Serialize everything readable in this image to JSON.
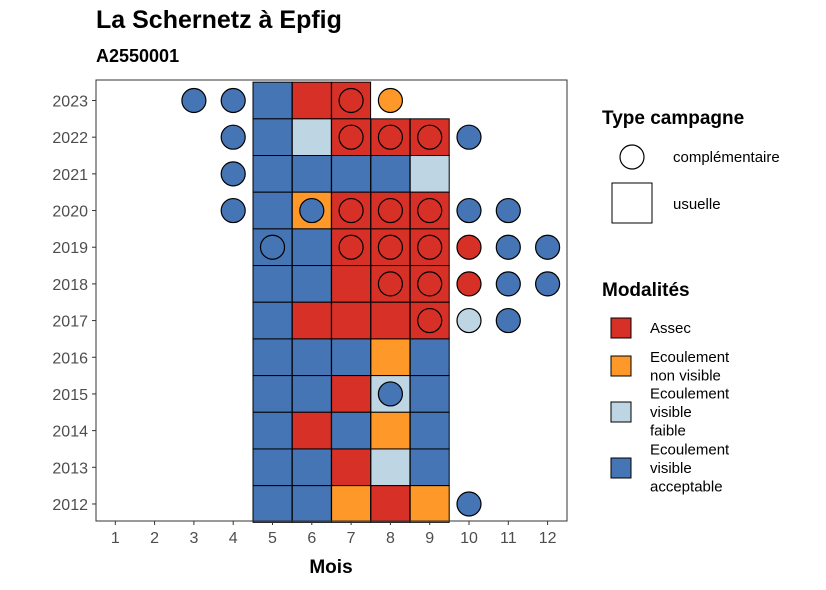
{
  "title": "La Schernetz à Epfig",
  "subtitle": "A2550001",
  "chart_data": {
    "type": "heatmap",
    "xlabel": "Mois",
    "ylabel": "",
    "x_ticks": [
      1,
      2,
      3,
      4,
      5,
      6,
      7,
      8,
      9,
      10,
      11,
      12
    ],
    "y_ticks": [
      2012,
      2013,
      2014,
      2015,
      2016,
      2017,
      2018,
      2019,
      2020,
      2021,
      2022,
      2023
    ],
    "legend_type": {
      "title": "Type campagne",
      "entries": [
        {
          "key": "complementaire",
          "label": "complémentaire",
          "shape": "circle"
        },
        {
          "key": "usuelle",
          "label": "usuelle",
          "shape": "square"
        }
      ]
    },
    "legend_mod": {
      "title": "Modalités",
      "entries": [
        {
          "key": "assec",
          "lines": [
            "Assec"
          ],
          "color": "#D73027"
        },
        {
          "key": "nv",
          "lines": [
            "Ecoulement",
            "non visible"
          ],
          "color": "#FE9929"
        },
        {
          "key": "vf",
          "lines": [
            "Ecoulement",
            "visible",
            "faible"
          ],
          "color": "#BED5E3"
        },
        {
          "key": "va",
          "lines": [
            "Ecoulement",
            "visible",
            "acceptable"
          ],
          "color": "#4575B4"
        }
      ]
    },
    "squares": [
      {
        "year": 2023,
        "month": 5,
        "mod": "va"
      },
      {
        "year": 2023,
        "month": 6,
        "mod": "assec"
      },
      {
        "year": 2023,
        "month": 7,
        "mod": "assec"
      },
      {
        "year": 2022,
        "month": 5,
        "mod": "va"
      },
      {
        "year": 2022,
        "month": 6,
        "mod": "vf"
      },
      {
        "year": 2022,
        "month": 7,
        "mod": "assec"
      },
      {
        "year": 2022,
        "month": 8,
        "mod": "assec"
      },
      {
        "year": 2022,
        "month": 9,
        "mod": "assec"
      },
      {
        "year": 2021,
        "month": 5,
        "mod": "va"
      },
      {
        "year": 2021,
        "month": 6,
        "mod": "va"
      },
      {
        "year": 2021,
        "month": 7,
        "mod": "va"
      },
      {
        "year": 2021,
        "month": 8,
        "mod": "va"
      },
      {
        "year": 2021,
        "month": 9,
        "mod": "vf"
      },
      {
        "year": 2020,
        "month": 5,
        "mod": "va"
      },
      {
        "year": 2020,
        "month": 6,
        "mod": "nv"
      },
      {
        "year": 2020,
        "month": 7,
        "mod": "assec"
      },
      {
        "year": 2020,
        "month": 8,
        "mod": "assec"
      },
      {
        "year": 2020,
        "month": 9,
        "mod": "assec"
      },
      {
        "year": 2019,
        "month": 5,
        "mod": "va"
      },
      {
        "year": 2019,
        "month": 6,
        "mod": "va"
      },
      {
        "year": 2019,
        "month": 7,
        "mod": "assec"
      },
      {
        "year": 2019,
        "month": 8,
        "mod": "assec"
      },
      {
        "year": 2019,
        "month": 9,
        "mod": "assec"
      },
      {
        "year": 2018,
        "month": 5,
        "mod": "va"
      },
      {
        "year": 2018,
        "month": 6,
        "mod": "va"
      },
      {
        "year": 2018,
        "month": 7,
        "mod": "assec"
      },
      {
        "year": 2018,
        "month": 8,
        "mod": "assec"
      },
      {
        "year": 2018,
        "month": 9,
        "mod": "assec"
      },
      {
        "year": 2017,
        "month": 5,
        "mod": "va"
      },
      {
        "year": 2017,
        "month": 6,
        "mod": "assec"
      },
      {
        "year": 2017,
        "month": 7,
        "mod": "assec"
      },
      {
        "year": 2017,
        "month": 8,
        "mod": "assec"
      },
      {
        "year": 2017,
        "month": 9,
        "mod": "assec"
      },
      {
        "year": 2016,
        "month": 5,
        "mod": "va"
      },
      {
        "year": 2016,
        "month": 6,
        "mod": "va"
      },
      {
        "year": 2016,
        "month": 7,
        "mod": "va"
      },
      {
        "year": 2016,
        "month": 8,
        "mod": "nv"
      },
      {
        "year": 2016,
        "month": 9,
        "mod": "va"
      },
      {
        "year": 2015,
        "month": 5,
        "mod": "va"
      },
      {
        "year": 2015,
        "month": 6,
        "mod": "va"
      },
      {
        "year": 2015,
        "month": 7,
        "mod": "assec"
      },
      {
        "year": 2015,
        "month": 8,
        "mod": "vf"
      },
      {
        "year": 2015,
        "month": 9,
        "mod": "va"
      },
      {
        "year": 2014,
        "month": 5,
        "mod": "va"
      },
      {
        "year": 2014,
        "month": 6,
        "mod": "assec"
      },
      {
        "year": 2014,
        "month": 7,
        "mod": "va"
      },
      {
        "year": 2014,
        "month": 8,
        "mod": "nv"
      },
      {
        "year": 2014,
        "month": 9,
        "mod": "va"
      },
      {
        "year": 2013,
        "month": 5,
        "mod": "va"
      },
      {
        "year": 2013,
        "month": 6,
        "mod": "va"
      },
      {
        "year": 2013,
        "month": 7,
        "mod": "assec"
      },
      {
        "year": 2013,
        "month": 8,
        "mod": "vf"
      },
      {
        "year": 2013,
        "month": 9,
        "mod": "va"
      },
      {
        "year": 2012,
        "month": 5,
        "mod": "va"
      },
      {
        "year": 2012,
        "month": 6,
        "mod": "va"
      },
      {
        "year": 2012,
        "month": 7,
        "mod": "nv"
      },
      {
        "year": 2012,
        "month": 8,
        "mod": "assec"
      },
      {
        "year": 2012,
        "month": 9,
        "mod": "nv"
      }
    ],
    "circles": [
      {
        "year": 2023,
        "month": 3,
        "mod": "va"
      },
      {
        "year": 2023,
        "month": 4,
        "mod": "va"
      },
      {
        "year": 2023,
        "month": 7,
        "mod": "assec"
      },
      {
        "year": 2023,
        "month": 8,
        "mod": "nv"
      },
      {
        "year": 2022,
        "month": 4,
        "mod": "va"
      },
      {
        "year": 2022,
        "month": 7,
        "mod": "assec"
      },
      {
        "year": 2022,
        "month": 8,
        "mod": "assec"
      },
      {
        "year": 2022,
        "month": 9,
        "mod": "assec"
      },
      {
        "year": 2022,
        "month": 10,
        "mod": "va"
      },
      {
        "year": 2021,
        "month": 4,
        "mod": "va"
      },
      {
        "year": 2020,
        "month": 4,
        "mod": "va"
      },
      {
        "year": 2020,
        "month": 6,
        "mod": "va"
      },
      {
        "year": 2020,
        "month": 7,
        "mod": "assec"
      },
      {
        "year": 2020,
        "month": 8,
        "mod": "assec"
      },
      {
        "year": 2020,
        "month": 9,
        "mod": "assec"
      },
      {
        "year": 2020,
        "month": 10,
        "mod": "va"
      },
      {
        "year": 2020,
        "month": 11,
        "mod": "va"
      },
      {
        "year": 2019,
        "month": 5,
        "mod": "va"
      },
      {
        "year": 2019,
        "month": 7,
        "mod": "assec"
      },
      {
        "year": 2019,
        "month": 8,
        "mod": "assec"
      },
      {
        "year": 2019,
        "month": 9,
        "mod": "assec"
      },
      {
        "year": 2019,
        "month": 10,
        "mod": "assec"
      },
      {
        "year": 2019,
        "month": 11,
        "mod": "va"
      },
      {
        "year": 2019,
        "month": 12,
        "mod": "va"
      },
      {
        "year": 2018,
        "month": 8,
        "mod": "assec"
      },
      {
        "year": 2018,
        "month": 9,
        "mod": "assec"
      },
      {
        "year": 2018,
        "month": 10,
        "mod": "assec"
      },
      {
        "year": 2018,
        "month": 11,
        "mod": "va"
      },
      {
        "year": 2018,
        "month": 12,
        "mod": "va"
      },
      {
        "year": 2017,
        "month": 9,
        "mod": "assec"
      },
      {
        "year": 2017,
        "month": 10,
        "mod": "vf"
      },
      {
        "year": 2017,
        "month": 11,
        "mod": "va"
      },
      {
        "year": 2015,
        "month": 8,
        "mod": "va"
      },
      {
        "year": 2012,
        "month": 10,
        "mod": "va"
      }
    ]
  }
}
